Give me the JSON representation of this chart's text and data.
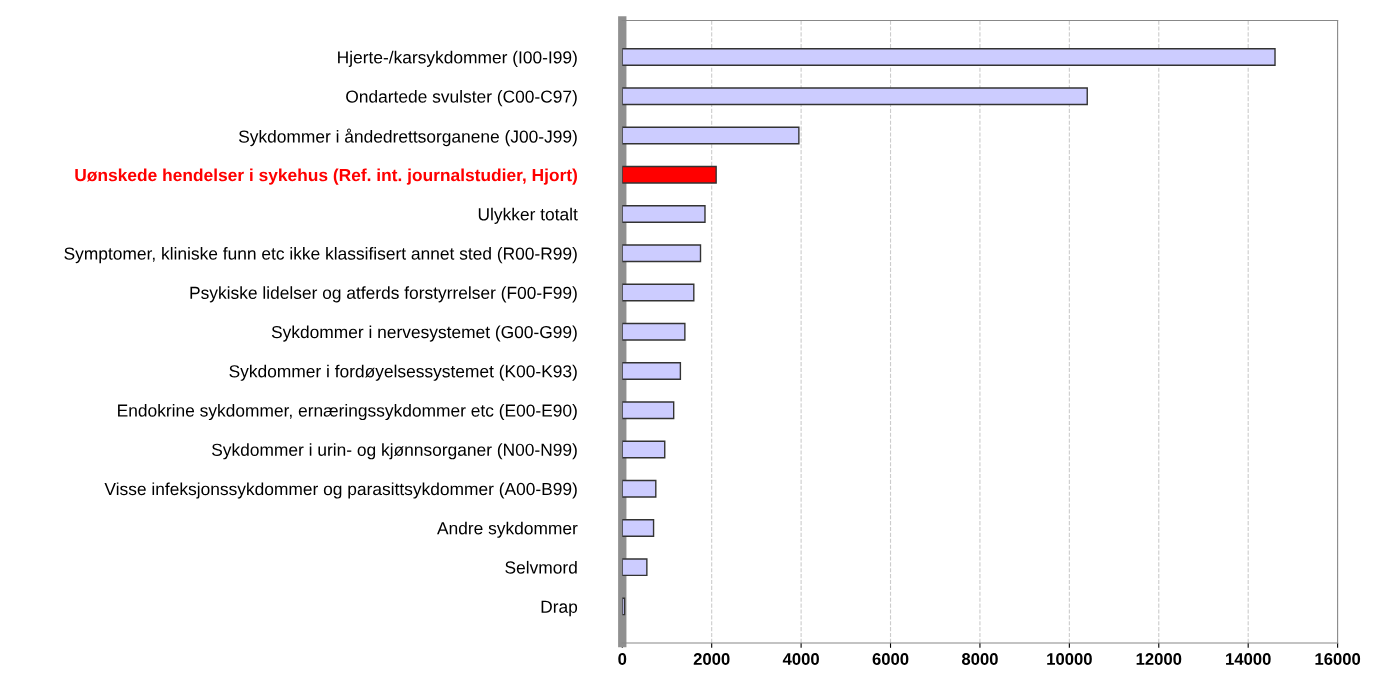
{
  "chart_data": {
    "type": "bar",
    "orientation": "horizontal",
    "categories": [
      "Hjerte-/karsykdommer (I00-I99)",
      "Ondartede svulster (C00-C97)",
      "Sykdommer i åndedrettsorganene (J00-J99)",
      "Uønskede hendelser i sykehus (Ref. int. journalstudier, Hjort)",
      "Ulykker totalt",
      "Symptomer, kliniske funn etc ikke klassifisert annet sted (R00-R99)",
      "Psykiske lidelser og atferds forstyrrelser (F00-F99)",
      "Sykdommer i nervesystemet (G00-G99)",
      "Sykdommer i fordøyelsessystemet (K00-K93)",
      "Endokrine sykdommer, ernæringssykdommer etc (E00-E90)",
      "Sykdommer i urin- og kjønnsorganer (N00-N99)",
      "Visse infeksjonssykdommer og parasittsykdommer (A00-B99)",
      "Andre sykdommer",
      "Selvmord",
      "Drap"
    ],
    "values": [
      14600,
      10400,
      3950,
      2100,
      1850,
      1750,
      1600,
      1400,
      1300,
      1150,
      950,
      750,
      700,
      550,
      50
    ],
    "color": "#ccccff",
    "colors": [
      "#ccccff",
      "#ccccff",
      "#ccccff",
      "#ff0000",
      "#ccccff",
      "#ccccff",
      "#ccccff",
      "#ccccff",
      "#ccccff",
      "#ccccff",
      "#ccccff",
      "#ccccff",
      "#ccccff",
      "#ccccff",
      "#ccccff"
    ],
    "xlim": [
      0,
      16000
    ],
    "xticks": [
      0,
      2000,
      4000,
      6000,
      8000,
      10000,
      12000,
      14000,
      16000
    ],
    "grid": "x"
  }
}
